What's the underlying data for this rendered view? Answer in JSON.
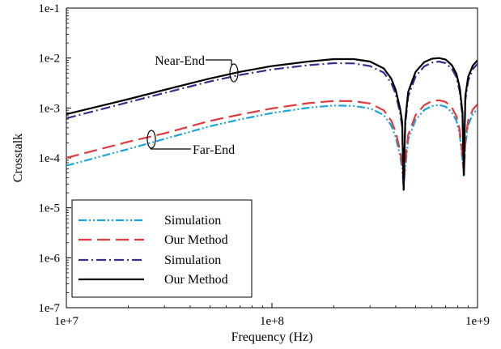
{
  "chart_data": {
    "type": "line",
    "xlabel": "Frequency (Hz)",
    "ylabel": "Crosstalk",
    "xscale": "log",
    "yscale": "log",
    "xlim": [
      10000000,
      1000000000
    ],
    "ylim": [
      1e-07,
      0.1
    ],
    "x_ticks": [
      "1e+7",
      "1e+8",
      "1e+9"
    ],
    "y_ticks": [
      "1e-1",
      "1e-2",
      "1e-3",
      "1e-4",
      "1e-5",
      "1e-6",
      "1e-7"
    ],
    "grid": false,
    "legend_position": "bottom-left",
    "annotations": [
      "Near-End",
      "Far-End"
    ],
    "x": [
      10000000,
      20000000,
      30000000,
      50000000,
      70000000,
      100000000,
      150000000,
      200000000,
      250000000,
      300000000,
      350000000,
      380000000,
      400000000,
      420000000,
      430000000,
      437000000,
      445000000,
      460000000,
      500000000,
      550000000,
      600000000,
      650000000,
      700000000,
      750000000,
      790000000,
      820000000,
      845000000,
      858000000,
      872000000,
      900000000,
      950000000,
      1000000000
    ],
    "series": [
      {
        "name": "Simulation",
        "color": "#1aa3dd",
        "dash": "dash-dot-dot",
        "group": "Far-End",
        "values": [
          7e-05,
          0.00015,
          0.00024,
          0.00043,
          0.00059,
          0.00079,
          0.00101,
          0.00112,
          0.0011,
          0.00098,
          0.00072,
          0.00045,
          0.00026,
          0.00011,
          6e-05,
          2.5e-05,
          6.5e-05,
          0.00023,
          0.00058,
          0.00091,
          0.0011,
          0.00115,
          0.00106,
          0.00082,
          0.00055,
          0.00028,
          9e-05,
          4.4e-05,
          0.00018,
          0.00045,
          0.00076,
          0.00095
        ]
      },
      {
        "name": "Our Method",
        "color": "#e0393e",
        "dash": "long-dash",
        "group": "Far-End",
        "values": [
          0.0001,
          0.00021,
          0.00031,
          0.00055,
          0.00074,
          0.00098,
          0.00125,
          0.00138,
          0.00137,
          0.00123,
          0.0009,
          0.00056,
          0.00033,
          0.00014,
          7.5e-05,
          2.8e-05,
          8e-05,
          0.00029,
          0.00072,
          0.00114,
          0.00137,
          0.00143,
          0.00132,
          0.00102,
          0.00068,
          0.00035,
          0.00011,
          4.6e-05,
          0.00022,
          0.00056,
          0.00094,
          0.00118
        ]
      },
      {
        "name": "Simulation",
        "color": "#3b2c8f",
        "dash": "dash-dot",
        "group": "Near-End",
        "values": [
          0.00062,
          0.0013,
          0.002,
          0.0034,
          0.0046,
          0.0059,
          0.0072,
          0.0079,
          0.0078,
          0.0069,
          0.0051,
          0.0032,
          0.0019,
          0.0008,
          0.00042,
          2.3e-05,
          0.00046,
          0.0017,
          0.0043,
          0.0068,
          0.0081,
          0.0085,
          0.0079,
          0.0061,
          0.0041,
          0.0021,
          0.00068,
          4.6e-05,
          0.0014,
          0.0035,
          0.006,
          0.0077
        ]
      },
      {
        "name": "Our Method",
        "color": "#000000",
        "dash": "solid",
        "group": "Near-End",
        "values": [
          0.00075,
          0.0015,
          0.0023,
          0.0039,
          0.0053,
          0.0069,
          0.0085,
          0.0095,
          0.0095,
          0.0085,
          0.0062,
          0.0039,
          0.0023,
          0.00098,
          0.00052,
          2.3e-05,
          0.00056,
          0.0021,
          0.0053,
          0.0083,
          0.0097,
          0.01,
          0.0093,
          0.0072,
          0.0048,
          0.0025,
          0.0008,
          4.6e-05,
          0.0017,
          0.0042,
          0.0071,
          0.009
        ]
      }
    ]
  }
}
